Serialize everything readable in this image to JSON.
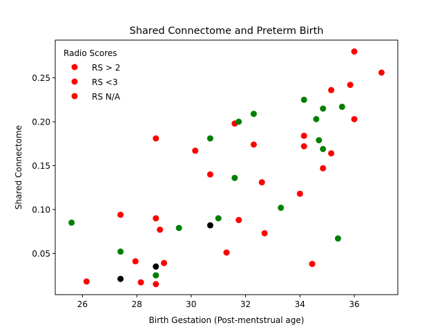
{
  "chart_data": {
    "type": "scatter",
    "title": "Shared Connectome and Preterm Birth",
    "xlabel": "Birth Gestation (Post-mentstrual age)",
    "ylabel": "Shared Connectome",
    "xlim": [
      25.0,
      37.6
    ],
    "ylim": [
      0.003,
      0.293
    ],
    "x_ticks": [
      26,
      28,
      30,
      32,
      34,
      36
    ],
    "y_ticks": [
      0.05,
      0.1,
      0.15,
      0.2,
      0.25
    ],
    "y_tick_labels": [
      "0.05",
      "0.10",
      "0.15",
      "0.20",
      "0.25"
    ],
    "grid": false,
    "legend": {
      "title": "Radio Scores",
      "placement": "top-left",
      "frame": false,
      "entries": [
        {
          "label": "RS > 2",
          "label_color": "#ff0000",
          "marker_color": "#ff0000"
        },
        {
          "label": "RS <3",
          "label_color": "#008000",
          "marker_color": "#ff0000"
        },
        {
          "label": "RS N/A",
          "label_color": "#000000",
          "marker_color": "#ff0000"
        }
      ]
    },
    "series": [
      {
        "color": "#ff0000",
        "points": [
          [
            36.0,
            0.28
          ],
          [
            37.0,
            0.256
          ],
          [
            35.85,
            0.242
          ],
          [
            35.15,
            0.236
          ],
          [
            36.0,
            0.203
          ],
          [
            31.6,
            0.198
          ],
          [
            34.15,
            0.184
          ],
          [
            28.7,
            0.181
          ],
          [
            32.3,
            0.174
          ],
          [
            34.15,
            0.172
          ],
          [
            30.15,
            0.167
          ],
          [
            35.15,
            0.164
          ],
          [
            34.85,
            0.147
          ],
          [
            30.7,
            0.14
          ],
          [
            32.6,
            0.131
          ],
          [
            34.0,
            0.118
          ],
          [
            27.4,
            0.094
          ],
          [
            28.7,
            0.09
          ],
          [
            31.75,
            0.088
          ],
          [
            28.85,
            0.077
          ],
          [
            32.7,
            0.073
          ],
          [
            31.3,
            0.051
          ],
          [
            27.95,
            0.041
          ],
          [
            29.0,
            0.039
          ],
          [
            34.45,
            0.038
          ],
          [
            26.15,
            0.018
          ],
          [
            28.15,
            0.017
          ],
          [
            28.7,
            0.015
          ]
        ]
      },
      {
        "color": "#008000",
        "points": [
          [
            34.15,
            0.225
          ],
          [
            35.55,
            0.217
          ],
          [
            34.85,
            0.215
          ],
          [
            32.3,
            0.209
          ],
          [
            34.6,
            0.203
          ],
          [
            31.75,
            0.2
          ],
          [
            34.7,
            0.179
          ],
          [
            30.7,
            0.181
          ],
          [
            34.85,
            0.169
          ],
          [
            31.6,
            0.136
          ],
          [
            33.3,
            0.102
          ],
          [
            31.0,
            0.09
          ],
          [
            25.6,
            0.085
          ],
          [
            29.55,
            0.079
          ],
          [
            35.4,
            0.067
          ],
          [
            27.4,
            0.052
          ],
          [
            28.7,
            0.025
          ]
        ]
      },
      {
        "color": "#000000",
        "points": [
          [
            30.7,
            0.082
          ],
          [
            28.7,
            0.035
          ],
          [
            27.4,
            0.021
          ]
        ]
      }
    ]
  }
}
